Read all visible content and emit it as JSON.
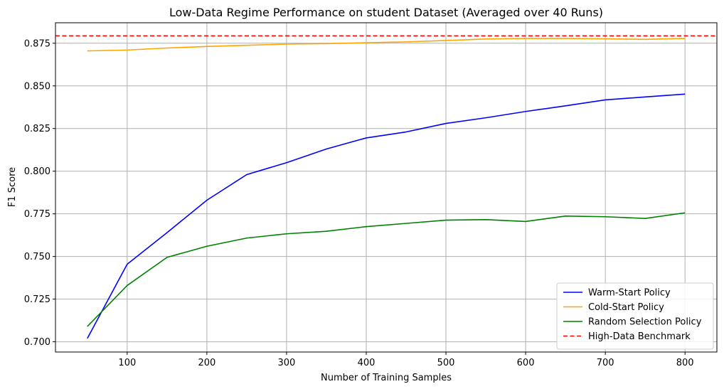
{
  "chart_data": {
    "type": "line",
    "title": "Low-Data Regime Performance on student Dataset (Averaged over 40 Runs)",
    "xlabel": "Number of Training Samples",
    "ylabel": "F1 Score",
    "xlim": [
      10,
      840
    ],
    "ylim": [
      0.694,
      0.887
    ],
    "xticks": [
      100,
      200,
      300,
      400,
      500,
      600,
      700,
      800
    ],
    "xtick_labels": [
      "100",
      "200",
      "300",
      "400",
      "500",
      "600",
      "700",
      "800"
    ],
    "yticks": [
      0.7,
      0.725,
      0.75,
      0.775,
      0.8,
      0.825,
      0.85,
      0.875
    ],
    "ytick_labels": [
      "0.700",
      "0.725",
      "0.750",
      "0.775",
      "0.800",
      "0.825",
      "0.850",
      "0.875"
    ],
    "grid": true,
    "legend_position": "lower-right",
    "x": [
      50,
      100,
      150,
      200,
      250,
      300,
      350,
      400,
      450,
      500,
      550,
      600,
      650,
      700,
      750,
      800
    ],
    "series": [
      {
        "name": "Warm-Start Policy",
        "color": "#0000ff",
        "style": "solid",
        "values": [
          0.702,
          0.7455,
          0.764,
          0.783,
          0.798,
          0.805,
          0.813,
          0.8195,
          0.823,
          0.828,
          0.8313,
          0.835,
          0.8383,
          0.8418,
          0.8435,
          0.8452
        ]
      },
      {
        "name": "Cold-Start Policy",
        "color": "#ffa500",
        "style": "solid",
        "values": [
          0.8705,
          0.871,
          0.8722,
          0.8731,
          0.8738,
          0.8745,
          0.8748,
          0.8753,
          0.8758,
          0.8766,
          0.8775,
          0.8778,
          0.8778,
          0.8776,
          0.8773,
          0.8778
        ]
      },
      {
        "name": "Random Selection Policy",
        "color": "#008000",
        "style": "solid",
        "values": [
          0.709,
          0.733,
          0.7495,
          0.756,
          0.7608,
          0.7633,
          0.7648,
          0.7675,
          0.7694,
          0.7713,
          0.7716,
          0.7705,
          0.7737,
          0.7733,
          0.7723,
          0.7756
        ]
      }
    ],
    "reference_lines": [
      {
        "name": "High-Data Benchmark",
        "color": "#ff0000",
        "style": "dashed",
        "y": 0.8793
      }
    ]
  }
}
